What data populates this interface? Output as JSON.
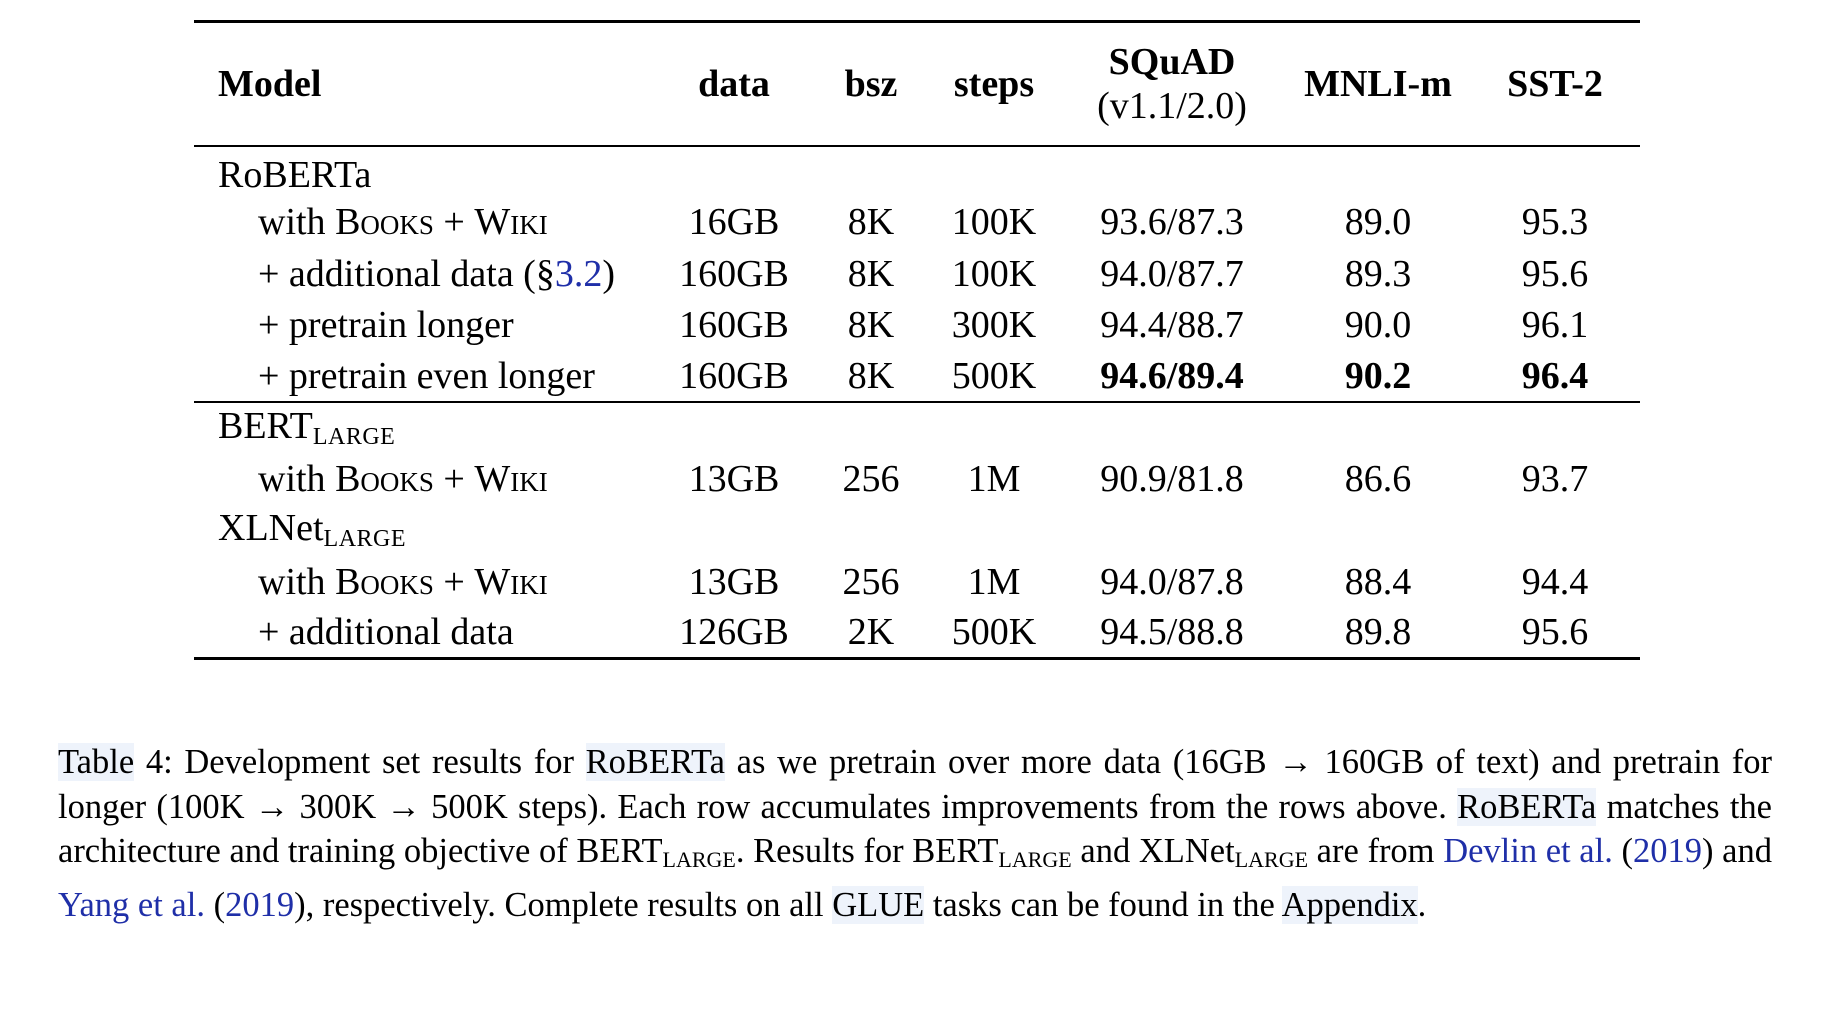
{
  "table": {
    "headers": {
      "model": "Model",
      "data": "data",
      "bsz": "bsz",
      "steps": "steps",
      "squad": "SQuAD",
      "squad_sub": "(v1.1/2.0)",
      "mnli": "MNLI-m",
      "sst": "SST-2"
    },
    "roberta": {
      "group_label": "RoBERTa",
      "rows": [
        {
          "prefix": "with ",
          "books": "Books",
          "plus": " + ",
          "wiki": "Wiki",
          "data": "16GB",
          "bsz": "8K",
          "steps": "100K",
          "squad": "93.6/87.3",
          "mnli": "89.0",
          "sst": "95.3"
        },
        {
          "prefix": "+ additional data (§",
          "ref": "3.2",
          "suffix": ")",
          "data": "160GB",
          "bsz": "8K",
          "steps": "100K",
          "squad": "94.0/87.7",
          "mnli": "89.3",
          "sst": "95.6"
        },
        {
          "label": "+ pretrain longer",
          "data": "160GB",
          "bsz": "8K",
          "steps": "300K",
          "squad": "94.4/88.7",
          "mnli": "90.0",
          "sst": "96.1"
        },
        {
          "label": "+ pretrain even longer",
          "data": "160GB",
          "bsz": "8K",
          "steps": "500K",
          "squad": "94.6/89.4",
          "mnli": "90.2",
          "sst": "96.4"
        }
      ]
    },
    "bert": {
      "group_label": "BERT",
      "group_sub": "LARGE",
      "rows": [
        {
          "prefix": "with ",
          "books": "Books",
          "plus": " + ",
          "wiki": "Wiki",
          "data": "13GB",
          "bsz": "256",
          "steps": "1M",
          "squad": "90.9/81.8",
          "mnli": "86.6",
          "sst": "93.7"
        }
      ]
    },
    "xlnet": {
      "group_label": "XLNet",
      "group_sub": "LARGE",
      "rows": [
        {
          "prefix": "with ",
          "books": "Books",
          "plus": " + ",
          "wiki": "Wiki",
          "data": "13GB",
          "bsz": "256",
          "steps": "1M",
          "squad": "94.0/87.8",
          "mnli": "88.4",
          "sst": "94.4"
        },
        {
          "label": "+ additional data",
          "data": "126GB",
          "bsz": "2K",
          "steps": "500K",
          "squad": "94.5/88.8",
          "mnli": "89.8",
          "sst": "95.6"
        }
      ]
    }
  },
  "caption": {
    "label": "Table",
    "number": " 4",
    "t1": ": Development set results for ",
    "roberta": "RoBERTa",
    "t2": " as we pretrain over more data (16GB → 160GB of text) and pretrain for longer (100K → 300K → 500K steps). Each row accumulates improvements from the rows above. ",
    "t3": " matches the architecture and training objective of ",
    "bert": "BERT",
    "large": "LARGE",
    "t4": ". Results for ",
    "t5": " and ",
    "xlnet": "XLNet",
    "t6": " are from ",
    "devlin": "Devlin et al.",
    "year_open": " (",
    "year_2019": "2019",
    "year_close": ")",
    "t7": " and ",
    "yang": "Yang et al.",
    "t8": ", respectively. Complete results on all ",
    "glue": "GLUE",
    "t9": " tasks can be found in the ",
    "appendix": "Appendix",
    "t10": "."
  }
}
